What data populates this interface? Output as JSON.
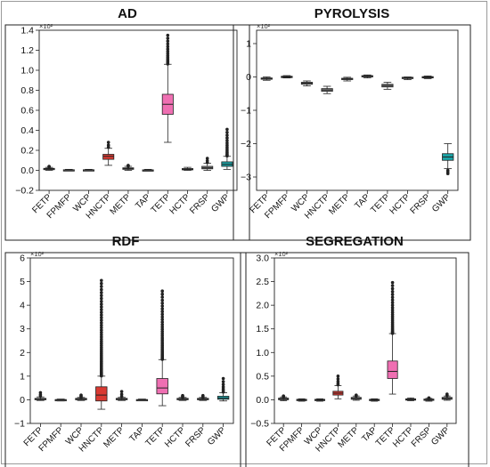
{
  "chart_data": [
    {
      "type": "box",
      "title": "AD",
      "scale_label": "×10²",
      "ylim": [
        -0.2,
        1.4
      ],
      "yticks": [
        -0.2,
        0.0,
        0.2,
        0.4,
        0.6,
        0.8,
        1.0,
        1.2,
        1.4
      ],
      "ytick_labels": [
        "−0.2",
        "0.0",
        "0.2",
        "0.4",
        "0.6",
        "0.8",
        "1.0",
        "1.2",
        "1.4"
      ],
      "categories": [
        "FETP",
        "FPMFP",
        "WCP",
        "HNCTP",
        "METP",
        "TAP",
        "TETP",
        "HCTP",
        "FRSP",
        "GWP"
      ],
      "boxes": [
        {
          "q1": 0.01,
          "median": 0.015,
          "q3": 0.02,
          "whislo": 0.0,
          "whishi": 0.03,
          "fliers_lo": 0.0,
          "fliers_hi": 0.04,
          "color": "#8b8b8b"
        },
        {
          "q1": 0.0,
          "median": 0.003,
          "q3": 0.006,
          "whislo": -0.005,
          "whishi": 0.01,
          "fliers_lo": 0.0,
          "fliers_hi": 0.0,
          "color": "#8b8b8b"
        },
        {
          "q1": 0.0,
          "median": 0.003,
          "q3": 0.006,
          "whislo": -0.005,
          "whishi": 0.01,
          "fliers_lo": 0.0,
          "fliers_hi": 0.0,
          "color": "#8b8b8b"
        },
        {
          "q1": 0.11,
          "median": 0.14,
          "q3": 0.16,
          "whislo": 0.05,
          "whishi": 0.22,
          "fliers_lo": 0.0,
          "fliers_hi": 0.28,
          "color": "#d93a32"
        },
        {
          "q1": 0.01,
          "median": 0.018,
          "q3": 0.025,
          "whislo": 0.0,
          "whishi": 0.04,
          "fliers_lo": 0.0,
          "fliers_hi": 0.05,
          "color": "#8b8b8b"
        },
        {
          "q1": 0.0,
          "median": 0.002,
          "q3": 0.005,
          "whislo": -0.005,
          "whishi": 0.01,
          "fliers_lo": 0.0,
          "fliers_hi": 0.0,
          "color": "#8b8b8b"
        },
        {
          "q1": 0.56,
          "median": 0.66,
          "q3": 0.76,
          "whislo": 0.28,
          "whishi": 1.06,
          "fliers_lo": 0.0,
          "fliers_hi": 1.35,
          "color": "#ef6fb2"
        },
        {
          "q1": 0.005,
          "median": 0.01,
          "q3": 0.018,
          "whislo": 0.0,
          "whishi": 0.03,
          "fliers_lo": 0.0,
          "fliers_hi": 0.0,
          "color": "#8b8b8b"
        },
        {
          "q1": 0.015,
          "median": 0.025,
          "q3": 0.04,
          "whislo": 0.0,
          "whishi": 0.07,
          "fliers_lo": 0.0,
          "fliers_hi": 0.12,
          "color": "#8b8b8b"
        },
        {
          "q1": 0.04,
          "median": 0.06,
          "q3": 0.085,
          "whislo": 0.01,
          "whishi": 0.14,
          "fliers_lo": 0.0,
          "fliers_hi": 0.41,
          "color": "#1aa3a6"
        }
      ]
    },
    {
      "type": "box",
      "title": "PYROLYSIS",
      "scale_label": "×10²",
      "ylim": [
        -3.4,
        1.4
      ],
      "yticks": [
        -3,
        -2,
        -1,
        0,
        1
      ],
      "ytick_labels": [
        "−3",
        "−2",
        "−1",
        "0",
        "1"
      ],
      "categories": [
        "FETP",
        "FPMFP",
        "WCP",
        "HNCTP",
        "METP",
        "TAP",
        "TETP",
        "HCTP",
        "FRSP",
        "GWP"
      ],
      "boxes": [
        {
          "q1": -0.07,
          "median": -0.05,
          "q3": -0.03,
          "whislo": -0.1,
          "whishi": 0.0,
          "fliers_lo": 0.0,
          "fliers_hi": 0.0,
          "color": "#8b8b8b"
        },
        {
          "q1": -0.01,
          "median": 0.0,
          "q3": 0.02,
          "whislo": -0.03,
          "whishi": 0.04,
          "fliers_lo": 0.0,
          "fliers_hi": 0.0,
          "color": "#8b8b8b"
        },
        {
          "q1": -0.22,
          "median": -0.19,
          "q3": -0.16,
          "whislo": -0.27,
          "whishi": -0.12,
          "fliers_lo": 0.0,
          "fliers_hi": 0.0,
          "color": "#8b8b8b"
        },
        {
          "q1": -0.43,
          "median": -0.39,
          "q3": -0.35,
          "whislo": -0.5,
          "whishi": -0.28,
          "fliers_lo": 0.0,
          "fliers_hi": 0.0,
          "color": "#8b8b8b"
        },
        {
          "q1": -0.08,
          "median": -0.06,
          "q3": -0.04,
          "whislo": -0.12,
          "whishi": -0.01,
          "fliers_lo": 0.0,
          "fliers_hi": 0.0,
          "color": "#8b8b8b"
        },
        {
          "q1": 0.0,
          "median": 0.02,
          "q3": 0.04,
          "whislo": -0.03,
          "whishi": 0.06,
          "fliers_lo": 0.0,
          "fliers_hi": 0.0,
          "color": "#8b8b8b"
        },
        {
          "q1": -0.3,
          "median": -0.26,
          "q3": -0.22,
          "whislo": -0.37,
          "whishi": -0.16,
          "fliers_lo": 0.0,
          "fliers_hi": 0.0,
          "color": "#8b8b8b"
        },
        {
          "q1": -0.05,
          "median": -0.03,
          "q3": -0.01,
          "whislo": -0.08,
          "whishi": 0.0,
          "fliers_lo": 0.0,
          "fliers_hi": 0.0,
          "color": "#8b8b8b"
        },
        {
          "q1": -0.03,
          "median": -0.01,
          "q3": 0.01,
          "whislo": -0.05,
          "whishi": 0.03,
          "fliers_lo": 0.0,
          "fliers_hi": 0.0,
          "color": "#8b8b8b"
        },
        {
          "q1": -2.5,
          "median": -2.4,
          "q3": -2.3,
          "whislo": -2.75,
          "whishi": -2.0,
          "fliers_lo": -2.9,
          "fliers_hi": 0.0,
          "color": "#1aa3a6"
        }
      ]
    },
    {
      "type": "box",
      "title": "RDF",
      "scale_label": "×10²",
      "ylim": [
        -1,
        6
      ],
      "yticks": [
        -1,
        0,
        1,
        2,
        3,
        4,
        5,
        6
      ],
      "ytick_labels": [
        "−1",
        "0",
        "1",
        "2",
        "3",
        "4",
        "5",
        "6"
      ],
      "categories": [
        "FETP",
        "FPMFP",
        "WCP",
        "HNCTP",
        "METP",
        "TAP",
        "TETP",
        "HCTP",
        "FRSP",
        "GWP"
      ],
      "boxes": [
        {
          "q1": 0.0,
          "median": 0.03,
          "q3": 0.06,
          "whislo": -0.03,
          "whishi": 0.12,
          "fliers_lo": 0.0,
          "fliers_hi": 0.3,
          "color": "#8b8b8b"
        },
        {
          "q1": -0.02,
          "median": 0.0,
          "q3": 0.01,
          "whislo": -0.05,
          "whishi": 0.03,
          "fliers_lo": 0.0,
          "fliers_hi": 0.0,
          "color": "#8b8b8b"
        },
        {
          "q1": 0.0,
          "median": 0.03,
          "q3": 0.06,
          "whislo": -0.03,
          "whishi": 0.1,
          "fliers_lo": 0.0,
          "fliers_hi": 0.2,
          "color": "#8b8b8b"
        },
        {
          "q1": -0.05,
          "median": 0.2,
          "q3": 0.55,
          "whislo": -0.4,
          "whishi": 1.0,
          "fliers_lo": 0.0,
          "fliers_hi": 5.05,
          "color": "#d93a32"
        },
        {
          "q1": 0.0,
          "median": 0.03,
          "q3": 0.06,
          "whislo": -0.03,
          "whishi": 0.1,
          "fliers_lo": 0.0,
          "fliers_hi": 0.35,
          "color": "#8b8b8b"
        },
        {
          "q1": -0.02,
          "median": 0.0,
          "q3": 0.01,
          "whislo": -0.04,
          "whishi": 0.03,
          "fliers_lo": 0.0,
          "fliers_hi": 0.0,
          "color": "#8b8b8b"
        },
        {
          "q1": 0.25,
          "median": 0.5,
          "q3": 0.9,
          "whislo": -0.25,
          "whishi": 1.7,
          "fliers_lo": 0.0,
          "fliers_hi": 4.6,
          "color": "#ef6fb2"
        },
        {
          "q1": 0.0,
          "median": 0.03,
          "q3": 0.06,
          "whislo": -0.03,
          "whishi": 0.1,
          "fliers_lo": 0.0,
          "fliers_hi": 0.18,
          "color": "#8b8b8b"
        },
        {
          "q1": 0.0,
          "median": 0.03,
          "q3": 0.06,
          "whislo": -0.03,
          "whishi": 0.1,
          "fliers_lo": 0.0,
          "fliers_hi": 0.18,
          "color": "#8b8b8b"
        },
        {
          "q1": 0.02,
          "median": 0.07,
          "q3": 0.15,
          "whislo": -0.05,
          "whishi": 0.3,
          "fliers_lo": 0.0,
          "fliers_hi": 0.9,
          "color": "#1aa3a6"
        }
      ]
    },
    {
      "type": "box",
      "title": "SEGREGATION",
      "scale_label": "×10²",
      "ylim": [
        -0.5,
        3.0
      ],
      "yticks": [
        -0.5,
        0.0,
        0.5,
        1.0,
        1.5,
        2.0,
        2.5,
        3.0
      ],
      "ytick_labels": [
        "−0.5",
        "0.0",
        "0.5",
        "1.0",
        "1.5",
        "2.0",
        "2.5",
        "3.0"
      ],
      "categories": [
        "FETP",
        "FPMFP",
        "WCP",
        "HNCTP",
        "METP",
        "TAP",
        "TETP",
        "HCTP",
        "FRSP",
        "GWP"
      ],
      "boxes": [
        {
          "q1": 0.0,
          "median": 0.02,
          "q3": 0.035,
          "whislo": -0.02,
          "whishi": 0.06,
          "fliers_lo": 0.0,
          "fliers_hi": 0.08,
          "color": "#8b8b8b"
        },
        {
          "q1": -0.01,
          "median": 0.0,
          "q3": 0.01,
          "whislo": -0.03,
          "whishi": 0.02,
          "fliers_lo": 0.0,
          "fliers_hi": 0.0,
          "color": "#8b8b8b"
        },
        {
          "q1": -0.01,
          "median": 0.0,
          "q3": 0.01,
          "whislo": -0.03,
          "whishi": 0.02,
          "fliers_lo": 0.0,
          "fliers_hi": 0.0,
          "color": "#8b8b8b"
        },
        {
          "q1": 0.1,
          "median": 0.14,
          "q3": 0.18,
          "whislo": 0.02,
          "whishi": 0.3,
          "fliers_lo": 0.0,
          "fliers_hi": 0.5,
          "color": "#d93a32"
        },
        {
          "q1": 0.01,
          "median": 0.03,
          "q3": 0.05,
          "whislo": -0.01,
          "whishi": 0.08,
          "fliers_lo": 0.0,
          "fliers_hi": 0.1,
          "color": "#8b8b8b"
        },
        {
          "q1": -0.01,
          "median": 0.0,
          "q3": 0.01,
          "whislo": -0.03,
          "whishi": 0.02,
          "fliers_lo": 0.0,
          "fliers_hi": 0.0,
          "color": "#8b8b8b"
        },
        {
          "q1": 0.45,
          "median": 0.6,
          "q3": 0.82,
          "whislo": 0.12,
          "whishi": 1.4,
          "fliers_lo": 0.0,
          "fliers_hi": 2.48,
          "color": "#ef6fb2"
        },
        {
          "q1": 0.0,
          "median": 0.01,
          "q3": 0.02,
          "whislo": -0.02,
          "whishi": 0.04,
          "fliers_lo": 0.0,
          "fliers_hi": 0.0,
          "color": "#8b8b8b"
        },
        {
          "q1": -0.01,
          "median": 0.0,
          "q3": 0.015,
          "whislo": -0.03,
          "whishi": 0.03,
          "fliers_lo": 0.0,
          "fliers_hi": 0.04,
          "color": "#8b8b8b"
        },
        {
          "q1": 0.01,
          "median": 0.03,
          "q3": 0.05,
          "whislo": -0.01,
          "whishi": 0.08,
          "fliers_lo": 0.0,
          "fliers_hi": 0.12,
          "color": "#8b8b8b"
        }
      ]
    }
  ]
}
